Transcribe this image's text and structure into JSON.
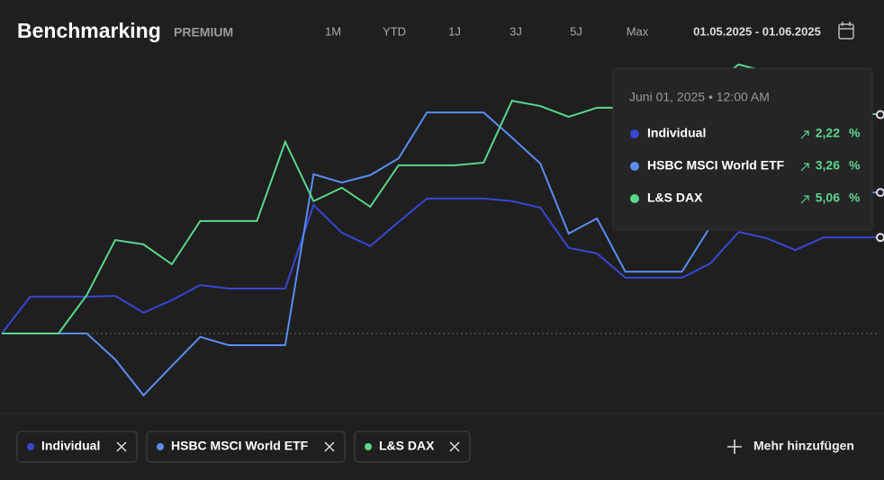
{
  "header": {
    "title": "Benchmarking",
    "badge": "PREMIUM",
    "ranges": [
      "1M",
      "YTD",
      "1J",
      "3J",
      "5J",
      "Max"
    ],
    "date_range": "01.05.2025 - 01.06.2025"
  },
  "chart_data": {
    "type": "line",
    "categories": [
      null,
      null,
      null,
      null,
      null,
      null,
      null,
      null,
      null,
      null,
      null,
      null,
      null,
      null,
      null,
      null,
      null,
      null,
      null,
      null,
      null,
      null,
      null,
      null,
      null,
      null,
      null,
      null,
      null,
      null,
      null,
      null
    ],
    "ylim": [
      -1.85,
      6.36
    ],
    "series": [
      {
        "name": "Individual",
        "color": "#3a45d0",
        "values": [
          0,
          0.85,
          0.85,
          0.85,
          0.87,
          0.48,
          0.77,
          1.12,
          1.04,
          1.04,
          1.04,
          2.97,
          2.33,
          2.02,
          2.58,
          3.12,
          3.12,
          3.12,
          3.06,
          2.91,
          1.98,
          1.85,
          1.29,
          1.29,
          1.29,
          1.62,
          2.35,
          2.2,
          1.93,
          2.22,
          2.22,
          2.22
        ]
      },
      {
        "name": "HSBC MSCI World ETF",
        "color": "#5b8def",
        "values": [
          0,
          0,
          0,
          0,
          -0.6,
          -1.43,
          -0.75,
          -0.08,
          -0.27,
          -0.27,
          -0.27,
          3.68,
          3.49,
          3.66,
          4.05,
          5.11,
          5.11,
          5.11,
          4.53,
          3.93,
          2.31,
          2.66,
          1.43,
          1.43,
          1.43,
          2.47,
          3.04,
          3.26,
          3.26,
          3.26,
          3.26,
          3.26
        ]
      },
      {
        "name": "L&S DAX",
        "color": "#5ad68f",
        "values": [
          0,
          0,
          0,
          0.89,
          2.16,
          2.06,
          1.6,
          2.6,
          2.6,
          2.6,
          4.43,
          3.06,
          3.37,
          2.93,
          3.89,
          3.89,
          3.89,
          3.95,
          5.38,
          5.26,
          5.01,
          5.22,
          5.22,
          5.43,
          5.63,
          5.74,
          6.22,
          6.05,
          5.43,
          5.22,
          5.11,
          5.06
        ]
      }
    ]
  },
  "tooltip": {
    "title": "Juni 01, 2025 • 12:00 AM",
    "values": [
      2.22,
      3.26,
      5.06
    ],
    "value_labels": [
      "2,22",
      "3,26",
      "5,06"
    ],
    "unit": "%"
  },
  "add_button": "Mehr hinzufügen"
}
